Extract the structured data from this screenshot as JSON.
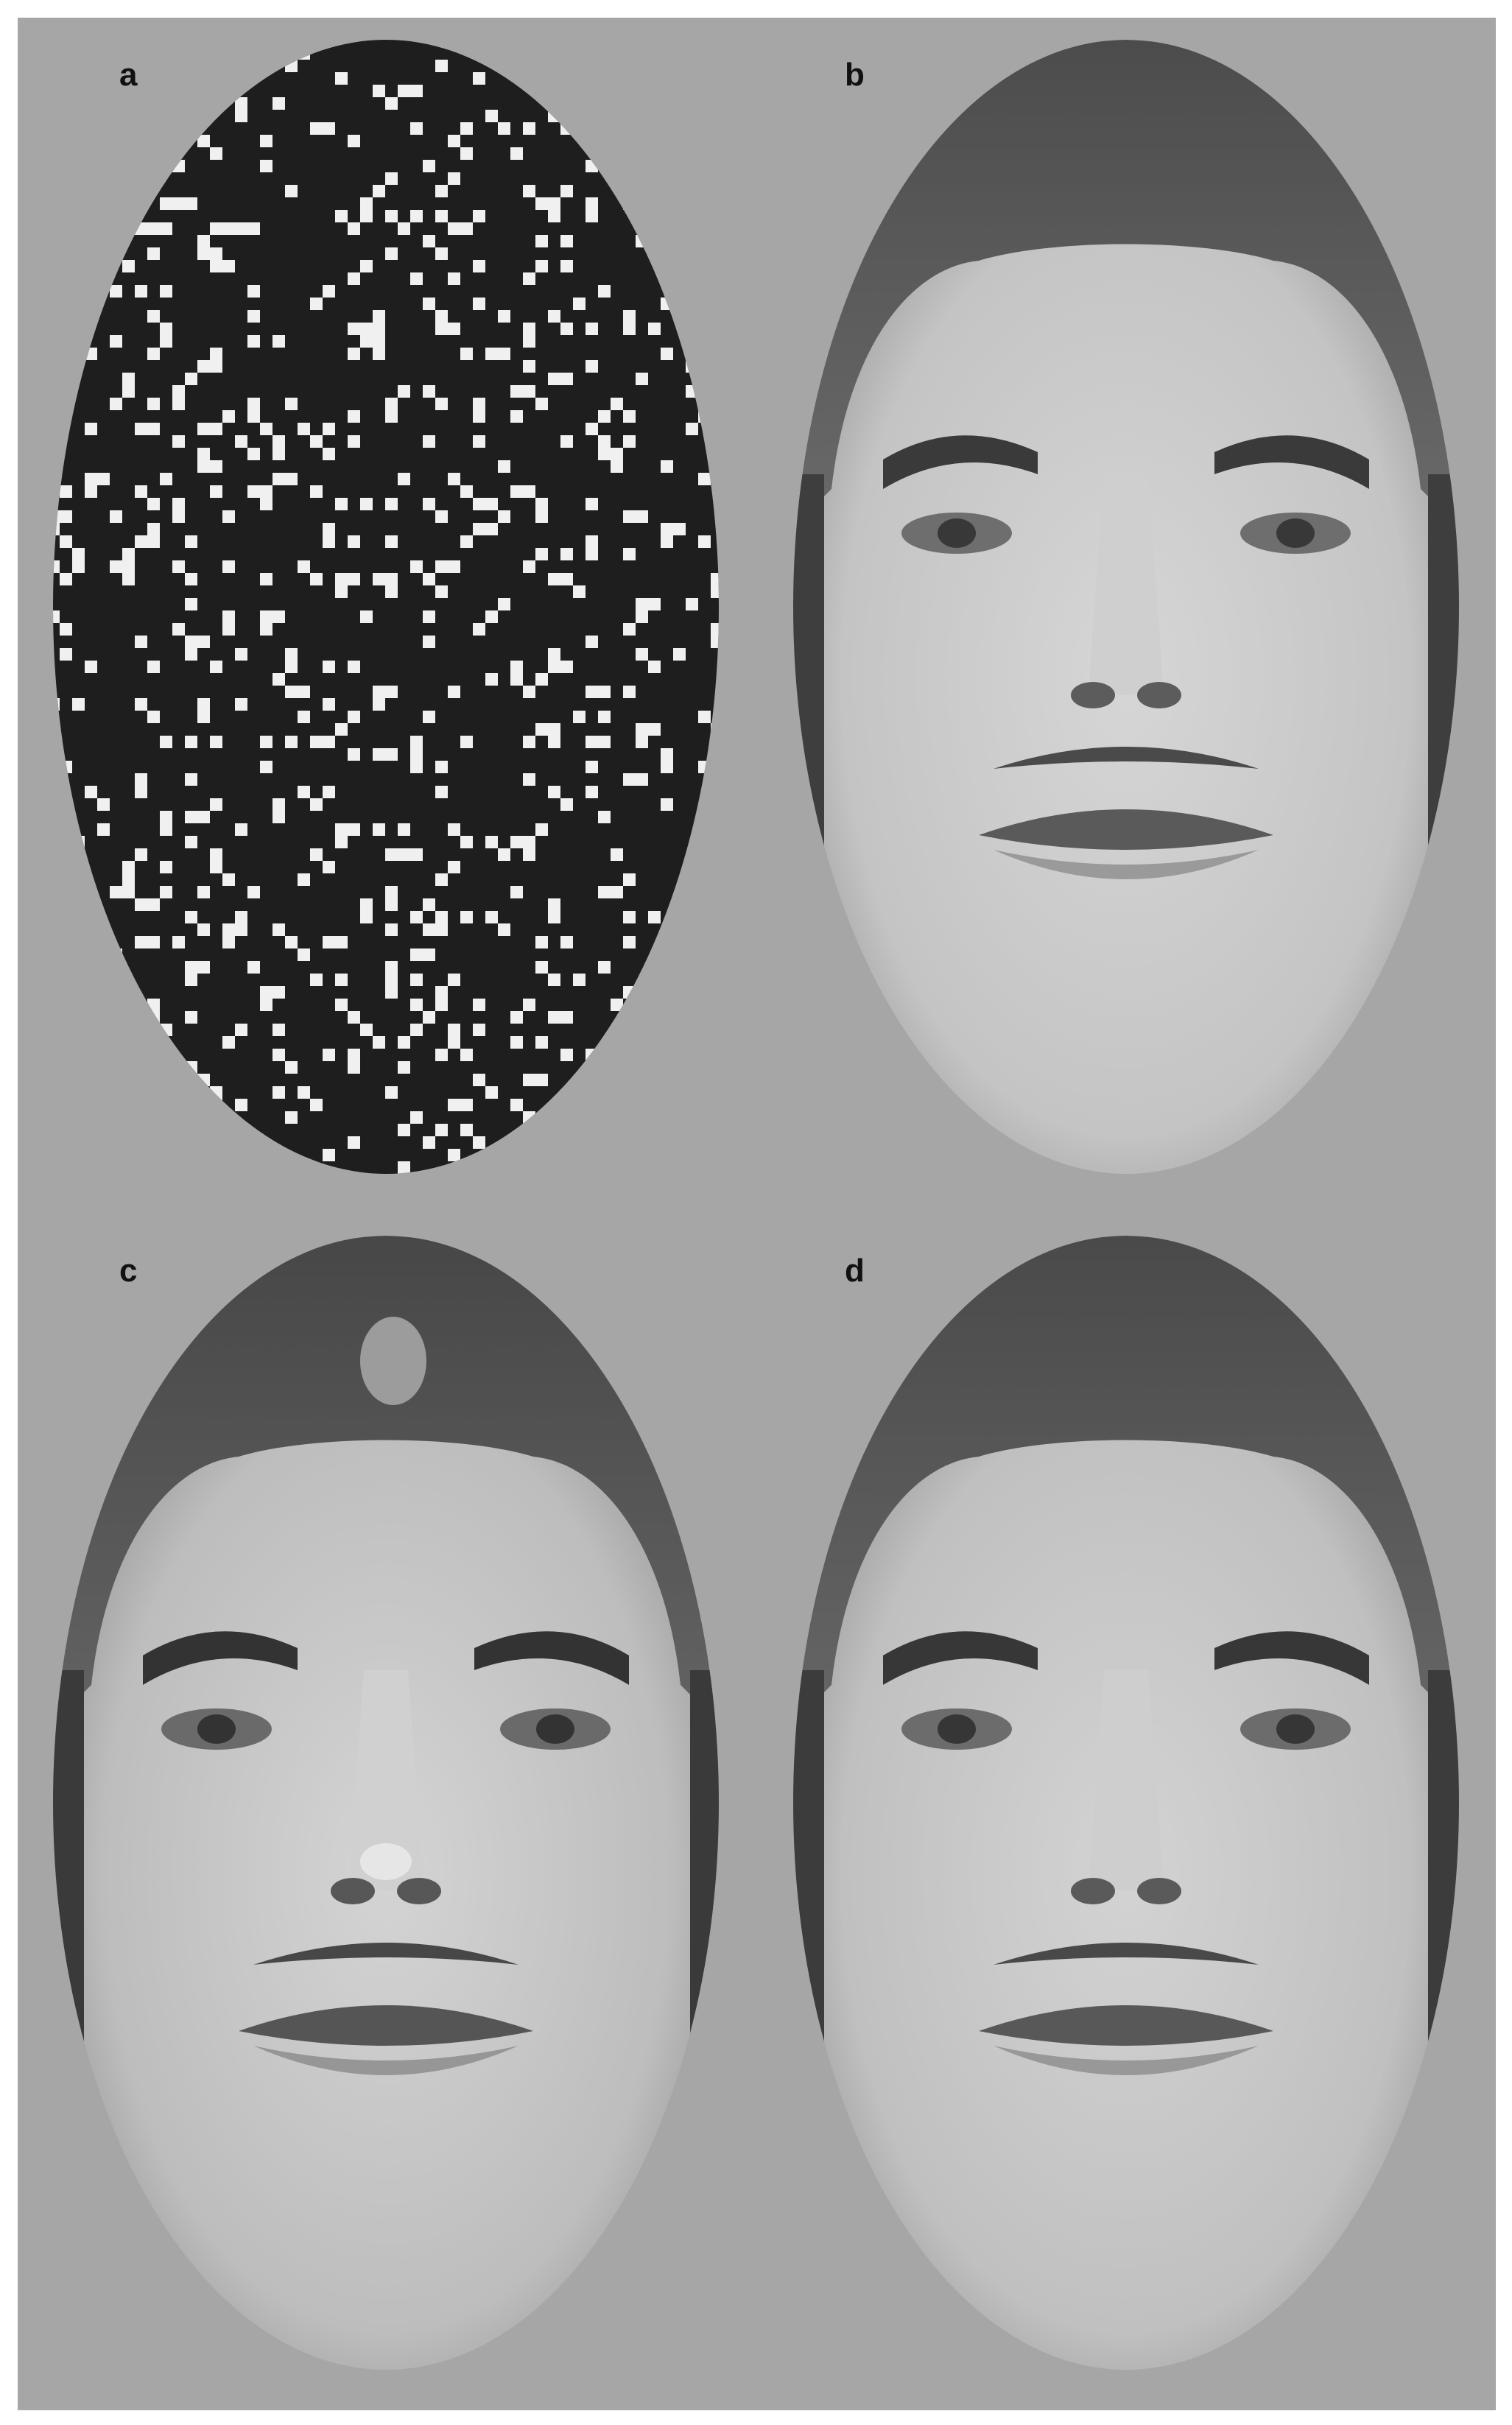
{
  "figure": {
    "background": "#a6a6a6",
    "panels": [
      {
        "label": "a",
        "content": "random-pixel-mask",
        "colors": {
          "mask": "#1e1e1e",
          "dots": "#f0f0f0"
        }
      },
      {
        "label": "b",
        "content": "face-grayscale"
      },
      {
        "label": "c",
        "content": "face-grayscale"
      },
      {
        "label": "d",
        "content": "face-grayscale"
      }
    ]
  }
}
